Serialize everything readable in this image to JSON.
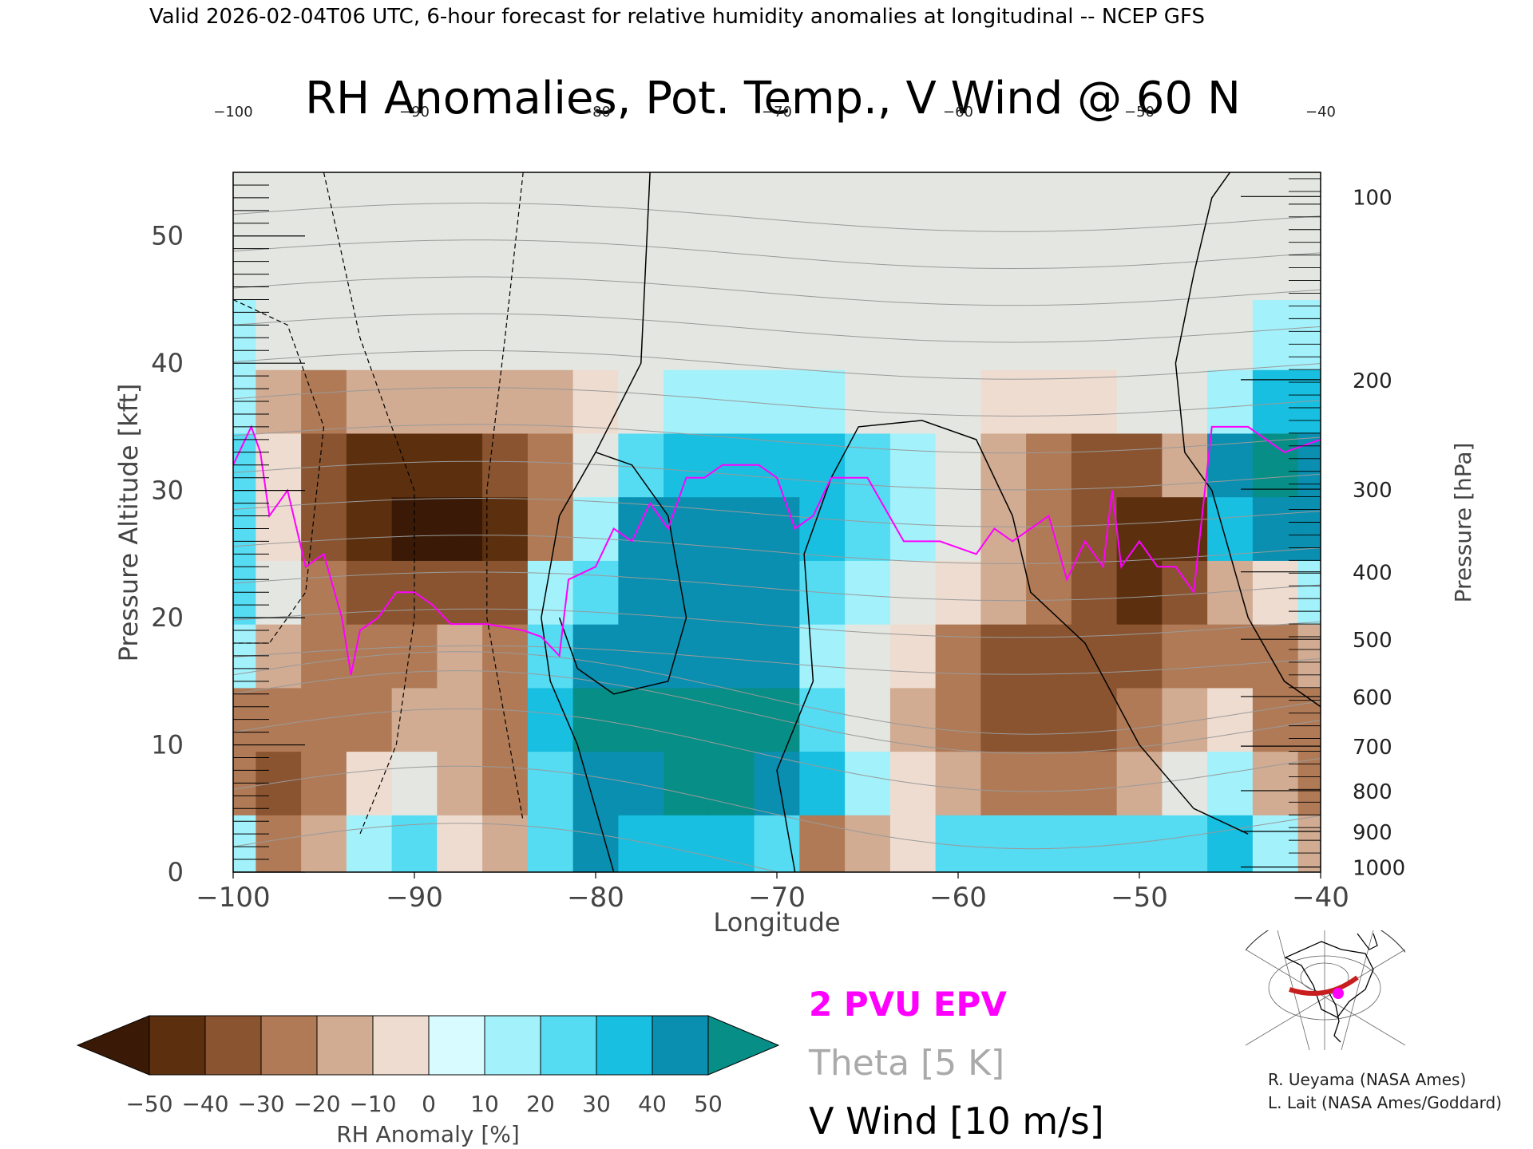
{
  "header": "Valid 2026-02-04T06 UTC, 6-hour forecast for relative humidity anomalies at longitudinal -- NCEP GFS",
  "chart_data": {
    "type": "heatmap",
    "title": "RH Anomalies, Pot. Temp., V Wind @ 60 N",
    "xlabel": "Longitude",
    "ylabel_left": "Pressure Altitude [kft]",
    "ylabel_right": "Pressure [hPa]",
    "xlim": [
      -100,
      -40
    ],
    "ylim": [
      0,
      55
    ],
    "x_ticks": [
      -100,
      -90,
      -80,
      -70,
      -60,
      -50,
      -40
    ],
    "x_tick_labels": [
      "−100",
      "−90",
      "−80",
      "−70",
      "−60",
      "−50",
      "−40"
    ],
    "y_ticks": [
      0,
      10,
      20,
      30,
      40,
      50
    ],
    "pressure_ticks": [
      {
        "label": "100",
        "kft": 53.1
      },
      {
        "label": "200",
        "kft": 38.7
      },
      {
        "label": "300",
        "kft": 30.1
      },
      {
        "label": "400",
        "kft": 23.6
      },
      {
        "label": "500",
        "kft": 18.3
      },
      {
        "label": "600",
        "kft": 13.8
      },
      {
        "label": "700",
        "kft": 9.9
      },
      {
        "label": "800",
        "kft": 6.4
      },
      {
        "label": "900",
        "kft": 3.2
      },
      {
        "label": "1000",
        "kft": 0.4
      }
    ],
    "theta_levels": [
      250,
      260,
      270,
      280,
      290,
      300,
      310,
      320,
      330,
      340,
      350,
      360,
      370,
      380,
      390,
      400,
      410,
      420
    ],
    "rh_anomaly_grid": {
      "lon": [
        -100,
        -97.5,
        -95,
        -92.5,
        -90,
        -87.5,
        -85,
        -82.5,
        -80,
        -77.5,
        -75,
        -72.5,
        -70,
        -67.5,
        -65,
        -62.5,
        -60,
        -57.5,
        -55,
        -52.5,
        -50,
        -47.5,
        -45,
        -42.5,
        -40
      ],
      "kft": [
        2,
        7,
        12,
        17,
        22,
        27,
        32,
        37,
        42,
        48,
        54
      ],
      "values": [
        [
          10,
          -30,
          -20,
          15,
          20,
          -10,
          -20,
          25,
          40,
          35,
          35,
          30,
          20,
          -25,
          -20,
          -10,
          20,
          20,
          20,
          20,
          20,
          25,
          30,
          10,
          -15
        ],
        [
          -30,
          -35,
          -25,
          -10,
          -5,
          -15,
          -25,
          25,
          40,
          45,
          50,
          50,
          45,
          30,
          10,
          -10,
          -20,
          -30,
          -30,
          -30,
          -20,
          -5,
          10,
          -20,
          -25
        ],
        [
          -25,
          -30,
          -30,
          -25,
          -20,
          -20,
          -25,
          30,
          55,
          55,
          55,
          55,
          50,
          20,
          -5,
          -20,
          -30,
          -35,
          -35,
          -35,
          -30,
          -20,
          -10,
          -30,
          -30
        ],
        [
          15,
          -20,
          -25,
          -30,
          -25,
          -20,
          -30,
          20,
          45,
          45,
          45,
          45,
          40,
          15,
          5,
          -10,
          -25,
          -35,
          -35,
          -35,
          -35,
          -30,
          -25,
          -30,
          -20
        ],
        [
          25,
          -5,
          -25,
          -40,
          -40,
          -40,
          -40,
          10,
          25,
          40,
          45,
          45,
          40,
          20,
          10,
          0,
          -10,
          -15,
          -25,
          -35,
          -45,
          -40,
          -20,
          -10,
          10
        ],
        [
          20,
          -10,
          -35,
          -45,
          -50,
          -50,
          -45,
          -30,
          10,
          40,
          45,
          45,
          40,
          30,
          20,
          10,
          -5,
          -20,
          -30,
          -40,
          -45,
          -45,
          30,
          45,
          45
        ],
        [
          20,
          -10,
          -35,
          -45,
          -45,
          -45,
          -40,
          -30,
          -5,
          25,
          30,
          35,
          30,
          30,
          25,
          10,
          -5,
          -20,
          -30,
          -35,
          -35,
          -20,
          45,
          50,
          45
        ],
        [
          15,
          -15,
          -25,
          -20,
          -20,
          -20,
          -20,
          -15,
          -10,
          5,
          10,
          10,
          10,
          10,
          5,
          0,
          -5,
          -10,
          -10,
          -10,
          -5,
          0,
          10,
          30,
          30
        ],
        [
          10,
          0,
          -5,
          -5,
          -5,
          -5,
          -5,
          -5,
          -5,
          0,
          0,
          0,
          0,
          0,
          0,
          0,
          0,
          0,
          0,
          0,
          0,
          0,
          0,
          10,
          15
        ],
        [
          0,
          0,
          0,
          0,
          0,
          0,
          0,
          0,
          0,
          0,
          0,
          0,
          0,
          0,
          0,
          0,
          0,
          0,
          0,
          0,
          0,
          0,
          0,
          0,
          0
        ],
        [
          0,
          0,
          0,
          0,
          0,
          0,
          0,
          0,
          0,
          0,
          0,
          0,
          0,
          0,
          0,
          0,
          0,
          0,
          0,
          0,
          0,
          0,
          0,
          0,
          0
        ]
      ]
    },
    "epv_2pvu_line": [
      [
        -100,
        32
      ],
      [
        -99,
        35
      ],
      [
        -98.5,
        33
      ],
      [
        -98,
        28
      ],
      [
        -97,
        30
      ],
      [
        -96,
        24
      ],
      [
        -95,
        25
      ],
      [
        -94,
        20
      ],
      [
        -93.5,
        15.5
      ],
      [
        -93,
        19
      ],
      [
        -92,
        20
      ],
      [
        -91,
        22
      ],
      [
        -90,
        22
      ],
      [
        -89,
        21
      ],
      [
        -88,
        19.5
      ],
      [
        -86,
        19.5
      ],
      [
        -84,
        19
      ],
      [
        -83,
        18.5
      ],
      [
        -82,
        17
      ],
      [
        -81.5,
        23
      ],
      [
        -80,
        24
      ],
      [
        -79,
        27
      ],
      [
        -78,
        26
      ],
      [
        -77,
        29
      ],
      [
        -76,
        27
      ],
      [
        -75,
        31
      ],
      [
        -74,
        31
      ],
      [
        -73,
        32
      ],
      [
        -71,
        32
      ],
      [
        -70,
        31
      ],
      [
        -69,
        27
      ],
      [
        -68,
        28
      ],
      [
        -67,
        31
      ],
      [
        -65,
        31
      ],
      [
        -63,
        26
      ],
      [
        -61,
        26
      ],
      [
        -59,
        25
      ],
      [
        -58,
        27
      ],
      [
        -57,
        26
      ],
      [
        -56,
        27
      ],
      [
        -55,
        28
      ],
      [
        -54,
        23
      ],
      [
        -53,
        26
      ],
      [
        -52,
        24
      ],
      [
        -51.5,
        30
      ],
      [
        -51,
        24
      ],
      [
        -50,
        26
      ],
      [
        -49,
        24
      ],
      [
        -48,
        24
      ],
      [
        -47,
        22
      ],
      [
        -46,
        35
      ],
      [
        -44,
        35
      ],
      [
        -42,
        33
      ],
      [
        -40,
        34
      ]
    ],
    "v_wind_contours": [
      {
        "label": "0",
        "points": [
          [
            -77,
            55
          ],
          [
            -77.5,
            40
          ],
          [
            -80,
            33
          ],
          [
            -82,
            28
          ],
          [
            -83,
            20
          ],
          [
            -82.5,
            15
          ],
          [
            -81,
            10
          ],
          [
            -80,
            5
          ],
          [
            -79,
            0
          ]
        ]
      },
      {
        "label": "0",
        "points": [
          [
            -69,
            0
          ],
          [
            -70,
            8
          ],
          [
            -68,
            15
          ],
          [
            -68.5,
            25
          ],
          [
            -67,
            31
          ],
          [
            -65.5,
            35
          ],
          [
            -62,
            35.5
          ],
          [
            -59,
            34
          ],
          [
            -57,
            28
          ],
          [
            -56,
            22
          ],
          [
            -53,
            18
          ],
          [
            -50,
            10
          ],
          [
            -47,
            5
          ],
          [
            -44,
            3
          ]
        ]
      },
      {
        "label": "10",
        "points": [
          [
            -45,
            55
          ],
          [
            -46,
            53
          ],
          [
            -47,
            47
          ],
          [
            -48,
            40
          ],
          [
            -47.5,
            33
          ],
          [
            -46,
            30
          ],
          [
            -45,
            25
          ],
          [
            -44,
            20
          ],
          [
            -42,
            15
          ],
          [
            -40,
            13
          ]
        ]
      },
      {
        "label": "10",
        "points": [
          [
            -80,
            33
          ],
          [
            -78,
            32
          ],
          [
            -76,
            28
          ],
          [
            -75,
            20
          ],
          [
            -76,
            15
          ],
          [
            -79,
            14
          ],
          [
            -81,
            16
          ],
          [
            -82,
            20
          ]
        ]
      }
    ],
    "legend": [
      {
        "label": "2 PVU EPV",
        "color": "#ff00ff"
      },
      {
        "label": "Theta [5 K]",
        "color": "#aaaaaa"
      },
      {
        "label": "V Wind [10 m/s]",
        "color": "#000000"
      }
    ],
    "colorbar": {
      "label": "RH Anomaly [%]",
      "ticks": [
        "−50",
        "−40",
        "−30",
        "−20",
        "−10",
        "0",
        "10",
        "20",
        "30",
        "40",
        "50"
      ],
      "colors": [
        "#3a1a06",
        "#5c300f",
        "#8a5431",
        "#b07a56",
        "#d1ab92",
        "#efdcd0",
        "#d8fbff",
        "#a2f1fb",
        "#55dbf2",
        "#18bfe0",
        "#0a8fb0",
        "#078e86"
      ]
    }
  },
  "credits": [
    "R. Ueyama (NASA Ames)",
    "L. Lait (NASA Ames/Goddard)"
  ]
}
